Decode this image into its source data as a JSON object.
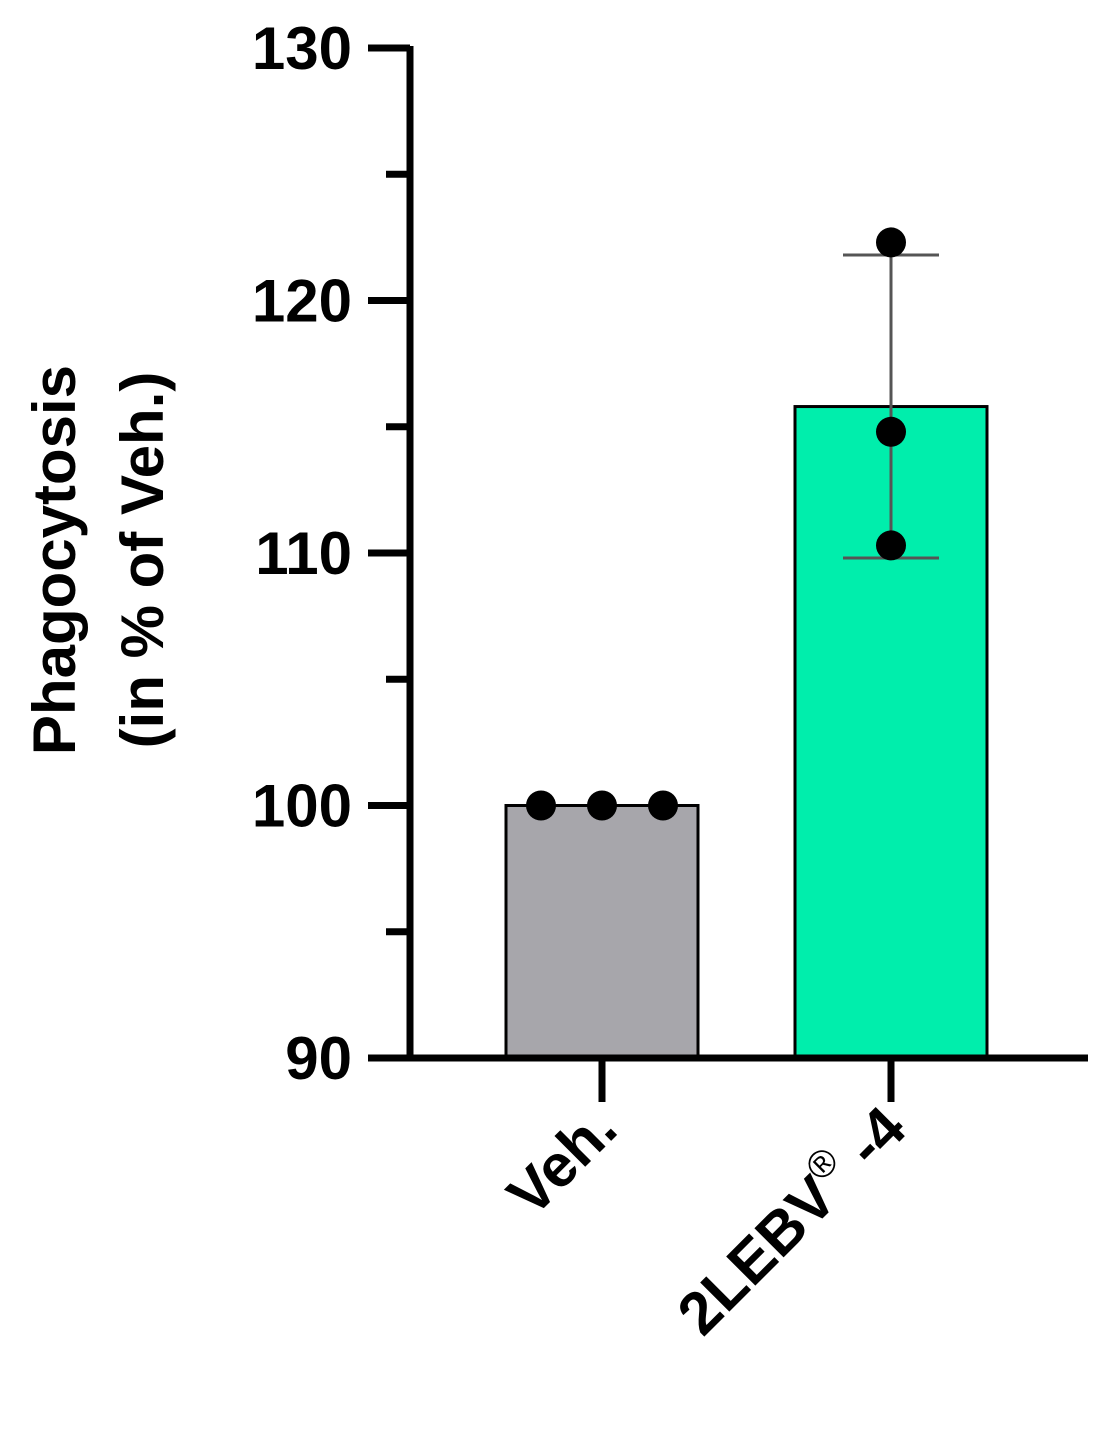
{
  "chart_data": {
    "type": "bar",
    "title": "",
    "ylabel": [
      "Phagocytosis",
      "(in % of Veh.)"
    ],
    "xlabel": "",
    "ylim": [
      90,
      130
    ],
    "yticks": [
      90,
      100,
      110,
      120,
      130
    ],
    "categories": [
      {
        "name": "Veh.",
        "superscript": ""
      },
      {
        "name": "2LEBV",
        "superscript": "®",
        "suffix": " -4"
      }
    ],
    "values": [
      100,
      115.8
    ],
    "error_high": [
      null,
      121.8
    ],
    "error_low": [
      null,
      109.8
    ],
    "points": [
      [
        100,
        100,
        100
      ],
      [
        122.3,
        114.8,
        110.3
      ]
    ],
    "colors": [
      "#a7a6ab",
      "#00eeac"
    ],
    "grid": false,
    "legend": "none"
  }
}
